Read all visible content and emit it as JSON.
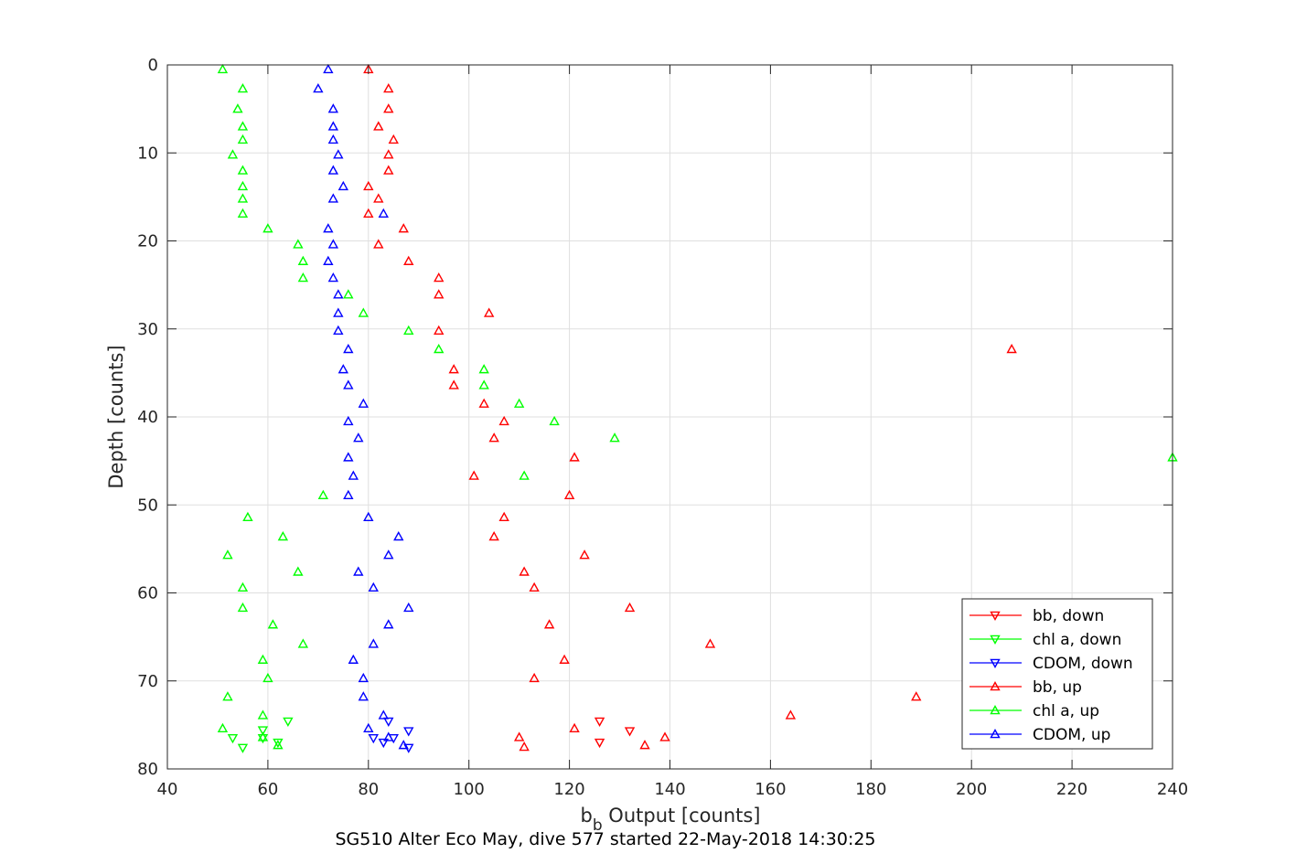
{
  "chart_data": {
    "type": "scatter",
    "xlabel_main": "b",
    "xlabel_sub": "b",
    "xlabel_rest": " Output [counts]",
    "ylabel": "Depth [counts]",
    "caption": "SG510 Alter Eco May, dive 577 started 22-May-2018 14:30:25",
    "xlim": [
      40,
      240
    ],
    "ylim": [
      0,
      80
    ],
    "y_reversed": true,
    "xticks": [
      40,
      60,
      80,
      100,
      120,
      140,
      160,
      180,
      200,
      220,
      240
    ],
    "yticks": [
      0,
      10,
      20,
      30,
      40,
      50,
      60,
      70,
      80
    ],
    "grid": true,
    "legend_position": "bottom-right",
    "series": [
      {
        "name": "bb, down",
        "color": "#ff0000",
        "marker": "triangle-down",
        "points": [
          [
            126,
            74.6
          ],
          [
            132,
            75.7
          ],
          [
            126,
            77.0
          ]
        ]
      },
      {
        "name": "chl a, down",
        "color": "#00ff00",
        "marker": "triangle-down",
        "points": [
          [
            64,
            74.6
          ],
          [
            59,
            75.6
          ],
          [
            53,
            76.5
          ],
          [
            59,
            76.5
          ],
          [
            62,
            77.0
          ],
          [
            55,
            77.6
          ]
        ]
      },
      {
        "name": "CDOM, down",
        "color": "#0000ff",
        "marker": "triangle-down",
        "points": [
          [
            84,
            74.6
          ],
          [
            88,
            75.7
          ],
          [
            85,
            76.5
          ],
          [
            81,
            76.5
          ],
          [
            83,
            77.0
          ],
          [
            88,
            77.6
          ]
        ]
      },
      {
        "name": "bb, up",
        "color": "#ff0000",
        "marker": "triangle-up",
        "points": [
          [
            80,
            0.5
          ],
          [
            84,
            2.7
          ],
          [
            84,
            5.0
          ],
          [
            82,
            7.0
          ],
          [
            85,
            8.5
          ],
          [
            84,
            10.2
          ],
          [
            84,
            12.0
          ],
          [
            80,
            13.8
          ],
          [
            82,
            15.2
          ],
          [
            80,
            16.9
          ],
          [
            87,
            18.6
          ],
          [
            82,
            20.4
          ],
          [
            88,
            22.3
          ],
          [
            94,
            24.2
          ],
          [
            94,
            26.1
          ],
          [
            104,
            28.2
          ],
          [
            94,
            30.2
          ],
          [
            208,
            32.3
          ],
          [
            97,
            34.6
          ],
          [
            97,
            36.4
          ],
          [
            103,
            38.5
          ],
          [
            107,
            40.5
          ],
          [
            105,
            42.4
          ],
          [
            121,
            44.6
          ],
          [
            101,
            46.7
          ],
          [
            120,
            48.9
          ],
          [
            107,
            51.4
          ],
          [
            105,
            53.6
          ],
          [
            123,
            55.7
          ],
          [
            111,
            57.6
          ],
          [
            113,
            59.4
          ],
          [
            132,
            61.7
          ],
          [
            116,
            63.6
          ],
          [
            148,
            65.8
          ],
          [
            119,
            67.6
          ],
          [
            113,
            69.7
          ],
          [
            189,
            71.8
          ],
          [
            164,
            73.9
          ],
          [
            121,
            75.4
          ],
          [
            110,
            76.4
          ],
          [
            139,
            76.4
          ],
          [
            111,
            77.5
          ],
          [
            135,
            77.3
          ]
        ]
      },
      {
        "name": "chl a, up",
        "color": "#00ff00",
        "marker": "triangle-up",
        "points": [
          [
            51,
            0.5
          ],
          [
            55,
            2.7
          ],
          [
            54,
            5.0
          ],
          [
            55,
            7.0
          ],
          [
            55,
            8.5
          ],
          [
            53,
            10.2
          ],
          [
            55,
            12.0
          ],
          [
            55,
            13.8
          ],
          [
            55,
            15.2
          ],
          [
            55,
            16.9
          ],
          [
            60,
            18.6
          ],
          [
            66,
            20.4
          ],
          [
            67,
            22.3
          ],
          [
            67,
            24.2
          ],
          [
            76,
            26.1
          ],
          [
            79,
            28.2
          ],
          [
            88,
            30.2
          ],
          [
            94,
            32.3
          ],
          [
            103,
            34.6
          ],
          [
            103,
            36.4
          ],
          [
            110,
            38.5
          ],
          [
            117,
            40.5
          ],
          [
            129,
            42.4
          ],
          [
            240,
            44.6
          ],
          [
            111,
            46.7
          ],
          [
            71,
            48.9
          ],
          [
            56,
            51.4
          ],
          [
            63,
            53.6
          ],
          [
            52,
            55.7
          ],
          [
            66,
            57.6
          ],
          [
            55,
            59.4
          ],
          [
            55,
            61.7
          ],
          [
            61,
            63.6
          ],
          [
            67,
            65.8
          ],
          [
            59,
            67.6
          ],
          [
            60,
            69.7
          ],
          [
            52,
            71.8
          ],
          [
            59,
            73.9
          ],
          [
            51,
            75.4
          ],
          [
            59,
            76.4
          ],
          [
            62,
            77.3
          ]
        ]
      },
      {
        "name": "CDOM, up",
        "color": "#0000ff",
        "marker": "triangle-up",
        "points": [
          [
            72,
            0.5
          ],
          [
            70,
            2.7
          ],
          [
            73,
            5.0
          ],
          [
            73,
            7.0
          ],
          [
            73,
            8.5
          ],
          [
            74,
            10.2
          ],
          [
            73,
            12.0
          ],
          [
            75,
            13.8
          ],
          [
            73,
            15.2
          ],
          [
            83,
            16.9
          ],
          [
            72,
            18.6
          ],
          [
            73,
            20.4
          ],
          [
            72,
            22.3
          ],
          [
            73,
            24.2
          ],
          [
            74,
            26.1
          ],
          [
            74,
            28.2
          ],
          [
            74,
            30.2
          ],
          [
            76,
            32.3
          ],
          [
            75,
            34.6
          ],
          [
            76,
            36.4
          ],
          [
            79,
            38.5
          ],
          [
            76,
            40.5
          ],
          [
            78,
            42.4
          ],
          [
            76,
            44.6
          ],
          [
            77,
            46.7
          ],
          [
            76,
            48.9
          ],
          [
            80,
            51.4
          ],
          [
            86,
            53.6
          ],
          [
            84,
            55.7
          ],
          [
            78,
            57.6
          ],
          [
            81,
            59.4
          ],
          [
            88,
            61.7
          ],
          [
            84,
            63.6
          ],
          [
            81,
            65.8
          ],
          [
            77,
            67.6
          ],
          [
            79,
            69.7
          ],
          [
            79,
            71.8
          ],
          [
            83,
            73.9
          ],
          [
            80,
            75.4
          ],
          [
            84,
            76.4
          ],
          [
            87,
            77.3
          ]
        ]
      }
    ]
  }
}
